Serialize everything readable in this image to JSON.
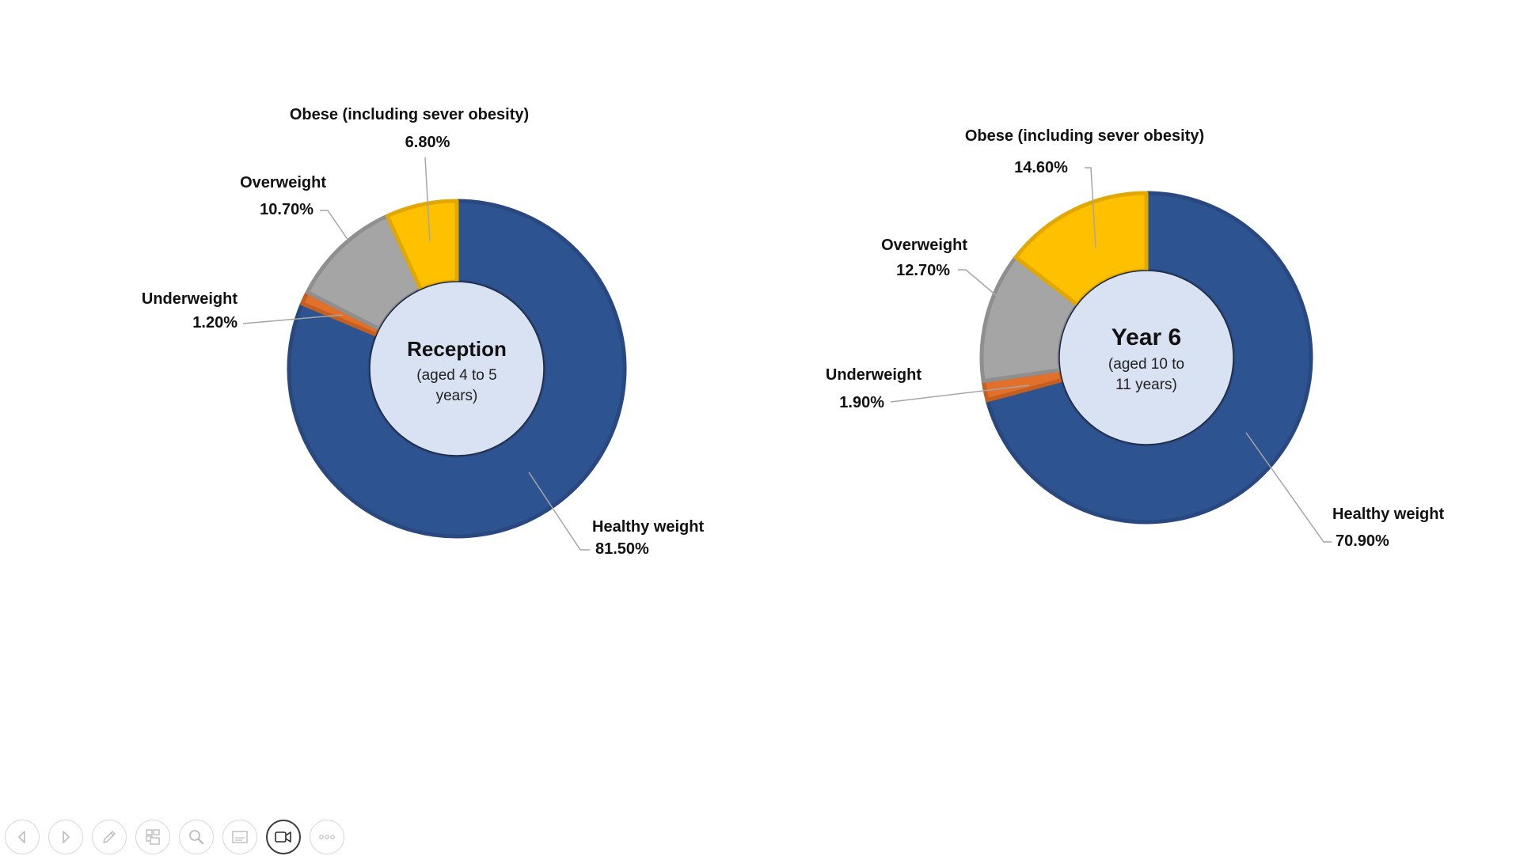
{
  "chart_data": [
    {
      "type": "pie",
      "variant": "donut",
      "center_title": "Reception",
      "center_subtitle": [
        "(aged 4 to 5",
        "years)"
      ],
      "categories": [
        "Healthy weight",
        "Underweight",
        "Overweight",
        "Obese (including sever obesity)"
      ],
      "values": [
        81.5,
        1.2,
        10.7,
        6.8
      ],
      "value_labels": [
        "81.50%",
        "1.20%",
        "10.70%",
        "6.80%"
      ],
      "colors": [
        "#2e5391",
        "#e0702a",
        "#a5a5a5",
        "#ffc000"
      ]
    },
    {
      "type": "pie",
      "variant": "donut",
      "center_title": "Year 6",
      "center_subtitle": [
        "(aged 10 to",
        "11 years)"
      ],
      "categories": [
        "Healthy weight",
        "Underweight",
        "Overweight",
        "Obese (including sever obesity)"
      ],
      "values": [
        70.9,
        1.9,
        12.7,
        14.6
      ],
      "value_labels": [
        "70.90%",
        "1.90%",
        "12.70%",
        "14.60%"
      ],
      "colors": [
        "#2e5391",
        "#e0702a",
        "#a5a5a5",
        "#ffc000"
      ]
    }
  ],
  "toolbar": {
    "buttons": [
      {
        "icon": "previous-slide-icon"
      },
      {
        "icon": "next-slide-icon"
      },
      {
        "icon": "pen-icon"
      },
      {
        "icon": "see-all-slides-icon"
      },
      {
        "icon": "zoom-icon"
      },
      {
        "icon": "subtitles-icon"
      },
      {
        "icon": "camera-icon",
        "active": true
      },
      {
        "icon": "more-options-icon"
      }
    ]
  }
}
